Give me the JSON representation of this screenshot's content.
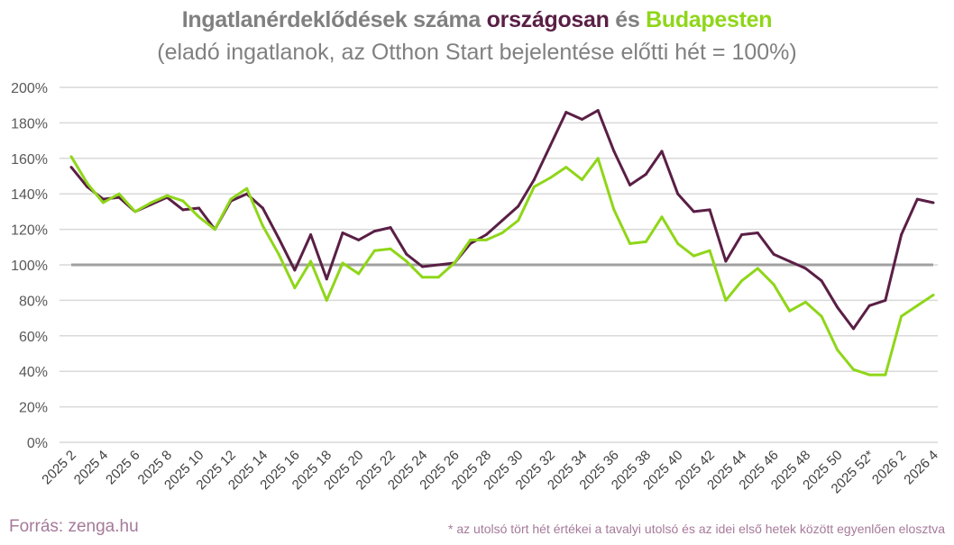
{
  "chart_data": {
    "type": "line",
    "title_parts": [
      {
        "text": "Ingatlanérdeklődések száma ",
        "color": "#808080"
      },
      {
        "text": "országosan",
        "color": "#5a1f45"
      },
      {
        "text": " és ",
        "color": "#808080"
      },
      {
        "text": "Budapesten",
        "color": "#8fd619"
      }
    ],
    "subtitle": "(eladó ingatlanok, az Otthon Start bejelentése előtti hét = 100%)",
    "x_tick_labels": [
      "2025 2",
      "2025 4",
      "2025 6",
      "2025 8",
      "2025 10",
      "2025 12",
      "2025 14",
      "2025 16",
      "2025 18",
      "2025 20",
      "2025 22",
      "2025 24",
      "2025 26",
      "2025 28",
      "2025 30",
      "2025 32",
      "2025 34",
      "2025 36",
      "2025 38",
      "2025 40",
      "2025 42",
      "2025 44",
      "2025 46",
      "2025 48",
      "2025 50",
      "2025 52*",
      "2026 2",
      "2026 4"
    ],
    "y_tick_labels": [
      "0%",
      "20%",
      "40%",
      "60%",
      "80%",
      "100%",
      "120%",
      "140%",
      "160%",
      "180%",
      "200%"
    ],
    "ylim": [
      0,
      200
    ],
    "grid": true,
    "reference_line": {
      "value": 100,
      "color": "#a0a0a0"
    },
    "series": [
      {
        "name": "országosan",
        "color": "#5a1f45",
        "values": [
          155,
          144,
          137,
          138,
          130,
          134,
          138,
          131,
          132,
          120,
          136,
          140,
          132,
          115,
          97,
          117,
          92,
          118,
          114,
          119,
          121,
          106,
          99,
          100,
          101,
          112,
          117,
          125,
          133,
          148,
          167,
          186,
          182,
          187,
          164,
          145,
          151,
          164,
          140,
          130,
          131,
          102,
          117,
          118,
          106,
          102,
          98,
          91,
          76,
          64,
          77,
          80,
          117,
          137,
          135
        ]
      },
      {
        "name": "Budapesten",
        "color": "#8fd619",
        "values": [
          161,
          146,
          135,
          140,
          130,
          135,
          139,
          136,
          127,
          120,
          137,
          143,
          122,
          106,
          87,
          102,
          80,
          101,
          95,
          108,
          109,
          102,
          93,
          93,
          101,
          114,
          114,
          118,
          125,
          144,
          149,
          155,
          148,
          160,
          131,
          112,
          113,
          127,
          112,
          105,
          108,
          80,
          91,
          98,
          89,
          74,
          79,
          71,
          52,
          41,
          38,
          38,
          71,
          77,
          83
        ]
      }
    ]
  },
  "source": "Forrás: zenga.hu",
  "footnote": "* az utolsó tört hét értékei a tavalyi utolsó és az idei első hetek között egyenlően elosztva"
}
